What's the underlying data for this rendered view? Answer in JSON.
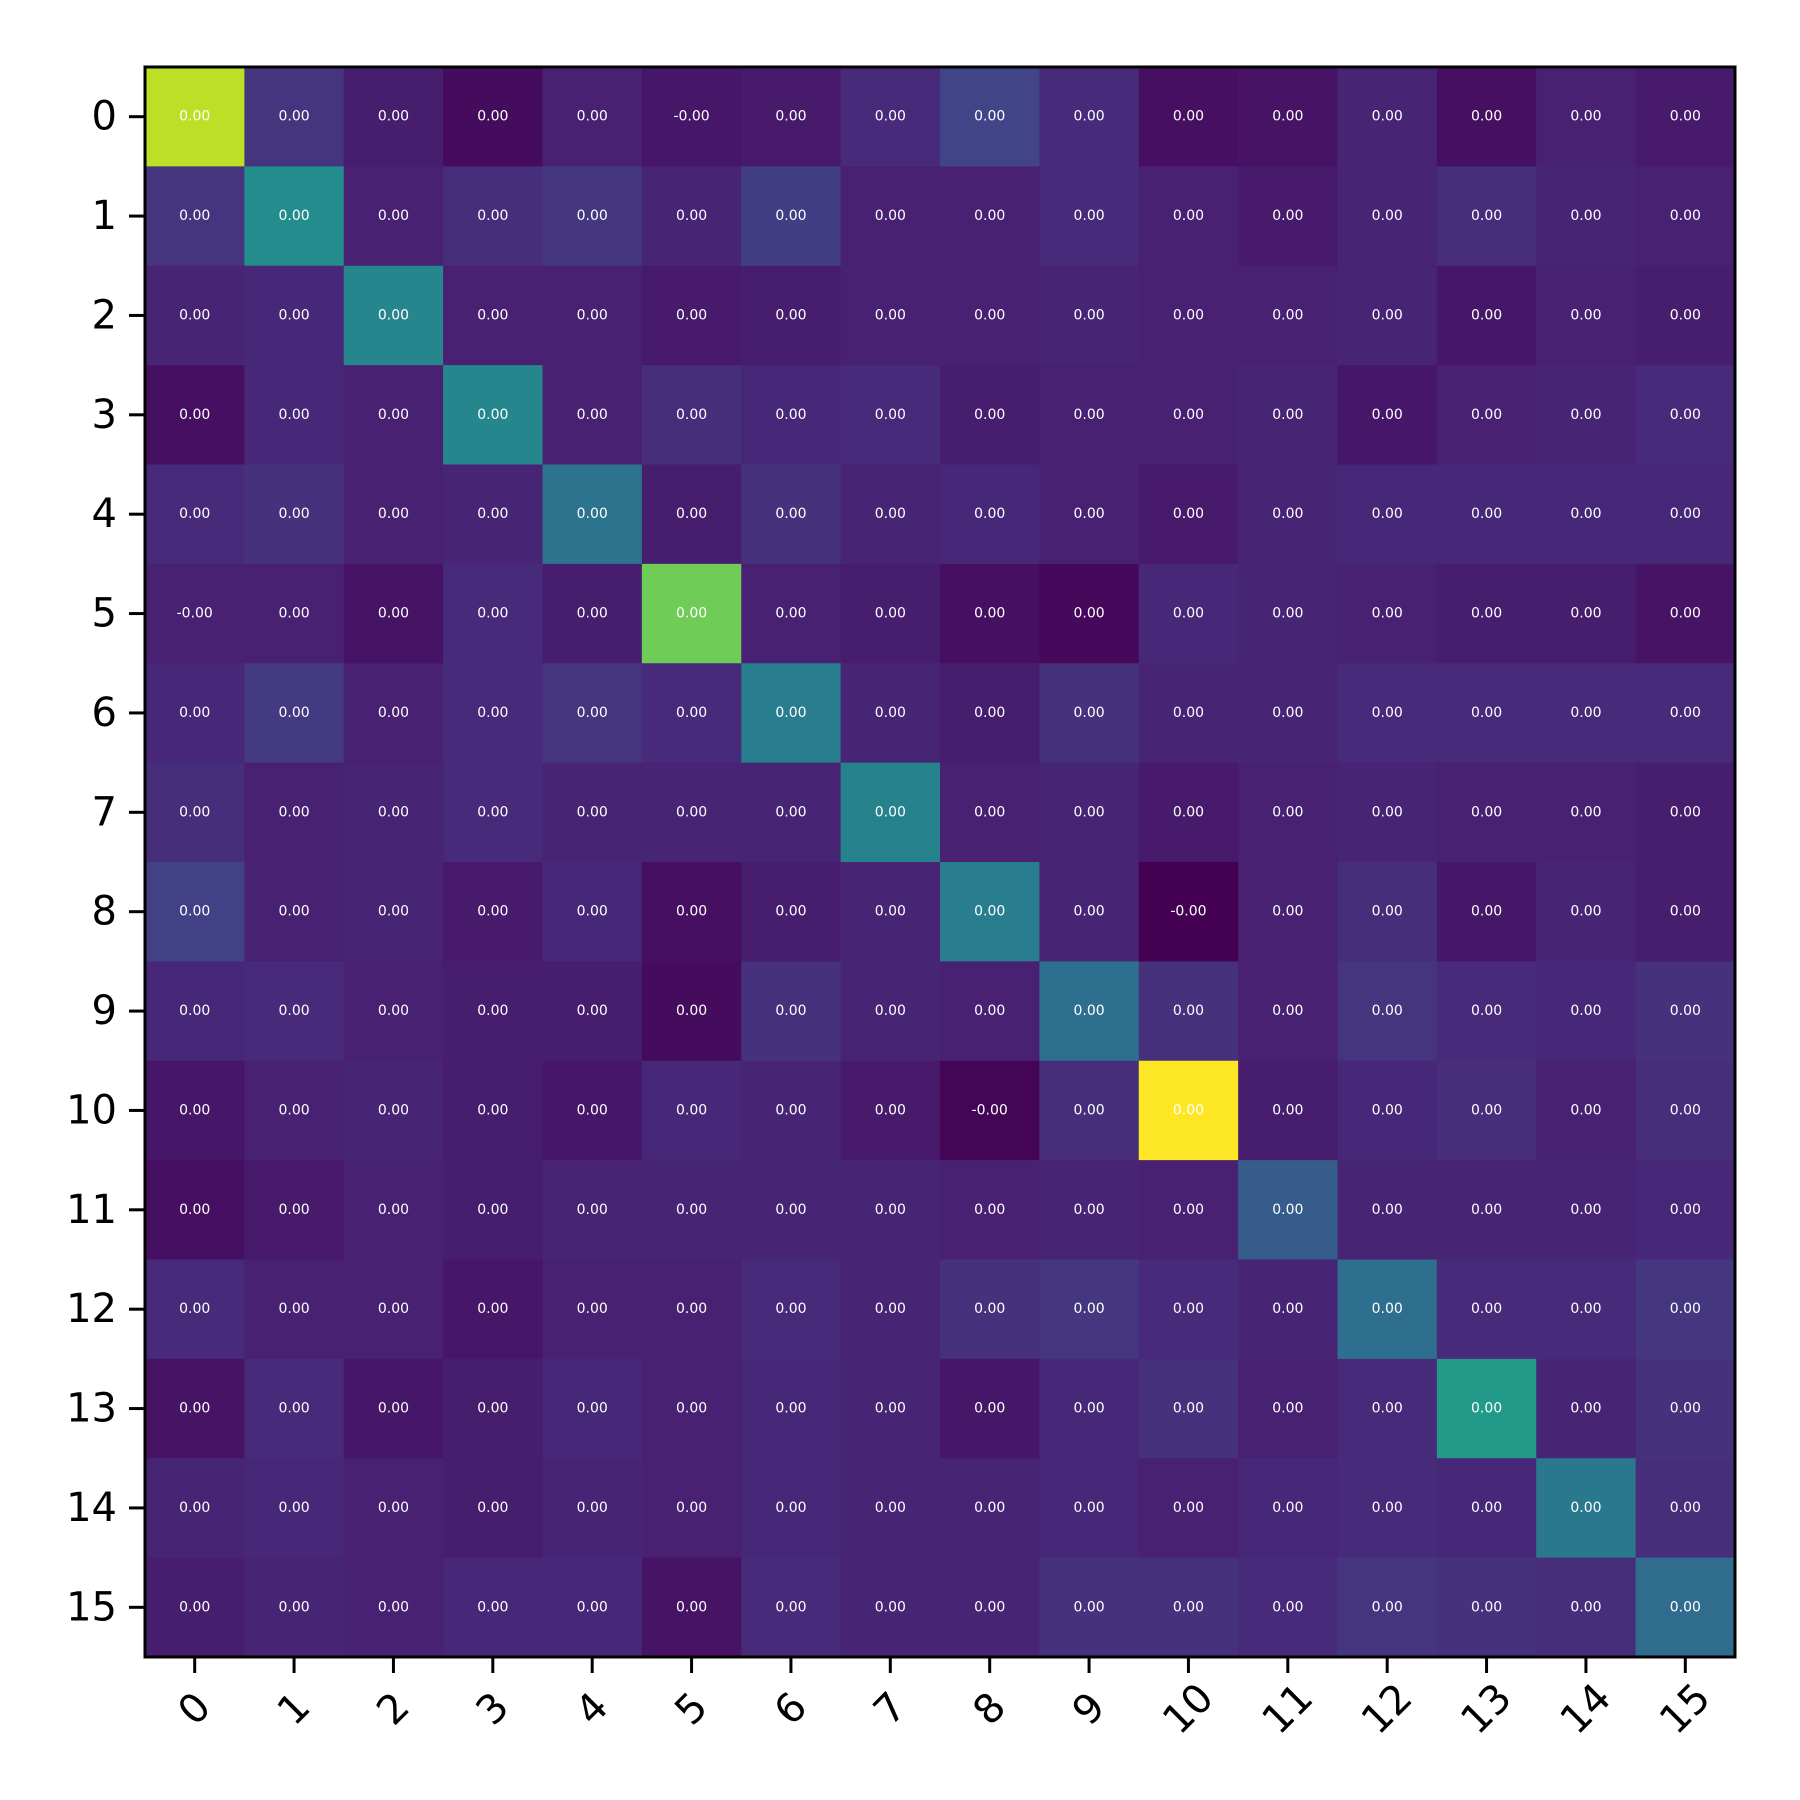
{
  "chart_data": {
    "type": "heatmap",
    "title": "",
    "xlabel": "",
    "ylabel": "",
    "x_tick_labels": [
      "0",
      "1",
      "2",
      "3",
      "4",
      "5",
      "6",
      "7",
      "8",
      "9",
      "10",
      "11",
      "12",
      "13",
      "14",
      "15"
    ],
    "y_tick_labels": [
      "0",
      "1",
      "2",
      "3",
      "4",
      "5",
      "6",
      "7",
      "8",
      "9",
      "10",
      "11",
      "12",
      "13",
      "14",
      "15"
    ],
    "colormap": "viridis",
    "grid": false,
    "legend": "none",
    "values": [
      [
        0.9,
        0.15,
        0.08,
        0.03,
        0.09,
        0.06,
        0.07,
        0.12,
        0.2,
        0.12,
        0.04,
        0.05,
        0.1,
        0.04,
        0.09,
        0.07
      ],
      [
        0.15,
        0.48,
        0.09,
        0.13,
        0.16,
        0.1,
        0.18,
        0.09,
        0.09,
        0.12,
        0.09,
        0.07,
        0.1,
        0.13,
        0.1,
        0.09
      ],
      [
        0.1,
        0.11,
        0.45,
        0.09,
        0.09,
        0.07,
        0.08,
        0.09,
        0.09,
        0.1,
        0.09,
        0.09,
        0.1,
        0.06,
        0.09,
        0.08
      ],
      [
        0.04,
        0.11,
        0.09,
        0.46,
        0.09,
        0.13,
        0.11,
        0.12,
        0.08,
        0.09,
        0.09,
        0.1,
        0.06,
        0.09,
        0.1,
        0.12
      ],
      [
        0.12,
        0.14,
        0.09,
        0.1,
        0.38,
        0.08,
        0.14,
        0.1,
        0.11,
        0.09,
        0.07,
        0.1,
        0.11,
        0.11,
        0.11,
        0.11
      ],
      [
        0.09,
        0.09,
        0.05,
        0.12,
        0.08,
        0.78,
        0.09,
        0.08,
        0.04,
        0.02,
        0.11,
        0.1,
        0.09,
        0.08,
        0.08,
        0.05
      ],
      [
        0.11,
        0.17,
        0.09,
        0.12,
        0.15,
        0.12,
        0.42,
        0.1,
        0.08,
        0.14,
        0.1,
        0.1,
        0.12,
        0.12,
        0.12,
        0.12
      ],
      [
        0.13,
        0.09,
        0.1,
        0.12,
        0.1,
        0.1,
        0.1,
        0.44,
        0.09,
        0.1,
        0.07,
        0.09,
        0.1,
        0.09,
        0.09,
        0.08
      ],
      [
        0.19,
        0.09,
        0.1,
        0.07,
        0.11,
        0.04,
        0.08,
        0.1,
        0.42,
        0.1,
        0.0,
        0.09,
        0.13,
        0.06,
        0.1,
        0.08
      ],
      [
        0.11,
        0.12,
        0.09,
        0.08,
        0.08,
        0.03,
        0.14,
        0.1,
        0.09,
        0.36,
        0.14,
        0.09,
        0.15,
        0.12,
        0.11,
        0.14
      ],
      [
        0.06,
        0.09,
        0.1,
        0.08,
        0.06,
        0.11,
        0.1,
        0.07,
        0.01,
        0.13,
        1.0,
        0.08,
        0.11,
        0.13,
        0.09,
        0.13
      ],
      [
        0.04,
        0.07,
        0.09,
        0.08,
        0.1,
        0.1,
        0.1,
        0.1,
        0.09,
        0.1,
        0.09,
        0.29,
        0.1,
        0.1,
        0.1,
        0.11
      ],
      [
        0.12,
        0.09,
        0.09,
        0.06,
        0.09,
        0.09,
        0.12,
        0.1,
        0.14,
        0.16,
        0.12,
        0.1,
        0.36,
        0.12,
        0.12,
        0.16
      ],
      [
        0.05,
        0.12,
        0.06,
        0.08,
        0.11,
        0.09,
        0.11,
        0.1,
        0.06,
        0.11,
        0.14,
        0.09,
        0.12,
        0.54,
        0.1,
        0.14
      ],
      [
        0.1,
        0.11,
        0.09,
        0.08,
        0.1,
        0.09,
        0.11,
        0.1,
        0.1,
        0.11,
        0.09,
        0.11,
        0.12,
        0.11,
        0.4,
        0.13
      ],
      [
        0.08,
        0.1,
        0.09,
        0.11,
        0.11,
        0.05,
        0.12,
        0.1,
        0.1,
        0.14,
        0.14,
        0.12,
        0.15,
        0.14,
        0.13,
        0.35
      ]
    ],
    "annotations": [
      [
        "0.00",
        "0.00",
        "0.00",
        "0.00",
        "0.00",
        "-0.00",
        "0.00",
        "0.00",
        "0.00",
        "0.00",
        "0.00",
        "0.00",
        "0.00",
        "0.00",
        "0.00",
        "0.00"
      ],
      [
        "0.00",
        "0.00",
        "0.00",
        "0.00",
        "0.00",
        "0.00",
        "0.00",
        "0.00",
        "0.00",
        "0.00",
        "0.00",
        "0.00",
        "0.00",
        "0.00",
        "0.00",
        "0.00"
      ],
      [
        "0.00",
        "0.00",
        "0.00",
        "0.00",
        "0.00",
        "0.00",
        "0.00",
        "0.00",
        "0.00",
        "0.00",
        "0.00",
        "0.00",
        "0.00",
        "0.00",
        "0.00",
        "0.00"
      ],
      [
        "0.00",
        "0.00",
        "0.00",
        "0.00",
        "0.00",
        "0.00",
        "0.00",
        "0.00",
        "0.00",
        "0.00",
        "0.00",
        "0.00",
        "0.00",
        "0.00",
        "0.00",
        "0.00"
      ],
      [
        "0.00",
        "0.00",
        "0.00",
        "0.00",
        "0.00",
        "0.00",
        "0.00",
        "0.00",
        "0.00",
        "0.00",
        "0.00",
        "0.00",
        "0.00",
        "0.00",
        "0.00",
        "0.00"
      ],
      [
        "-0.00",
        "0.00",
        "0.00",
        "0.00",
        "0.00",
        "0.00",
        "0.00",
        "0.00",
        "0.00",
        "0.00",
        "0.00",
        "0.00",
        "0.00",
        "0.00",
        "0.00",
        "0.00"
      ],
      [
        "0.00",
        "0.00",
        "0.00",
        "0.00",
        "0.00",
        "0.00",
        "0.00",
        "0.00",
        "0.00",
        "0.00",
        "0.00",
        "0.00",
        "0.00",
        "0.00",
        "0.00",
        "0.00"
      ],
      [
        "0.00",
        "0.00",
        "0.00",
        "0.00",
        "0.00",
        "0.00",
        "0.00",
        "0.00",
        "0.00",
        "0.00",
        "0.00",
        "0.00",
        "0.00",
        "0.00",
        "0.00",
        "0.00"
      ],
      [
        "0.00",
        "0.00",
        "0.00",
        "0.00",
        "0.00",
        "0.00",
        "0.00",
        "0.00",
        "0.00",
        "0.00",
        "-0.00",
        "0.00",
        "0.00",
        "0.00",
        "0.00",
        "0.00"
      ],
      [
        "0.00",
        "0.00",
        "0.00",
        "0.00",
        "0.00",
        "0.00",
        "0.00",
        "0.00",
        "0.00",
        "0.00",
        "0.00",
        "0.00",
        "0.00",
        "0.00",
        "0.00",
        "0.00"
      ],
      [
        "0.00",
        "0.00",
        "0.00",
        "0.00",
        "0.00",
        "0.00",
        "0.00",
        "0.00",
        "-0.00",
        "0.00",
        "0.00",
        "0.00",
        "0.00",
        "0.00",
        "0.00",
        "0.00"
      ],
      [
        "0.00",
        "0.00",
        "0.00",
        "0.00",
        "0.00",
        "0.00",
        "0.00",
        "0.00",
        "0.00",
        "0.00",
        "0.00",
        "0.00",
        "0.00",
        "0.00",
        "0.00",
        "0.00"
      ],
      [
        "0.00",
        "0.00",
        "0.00",
        "0.00",
        "0.00",
        "0.00",
        "0.00",
        "0.00",
        "0.00",
        "0.00",
        "0.00",
        "0.00",
        "0.00",
        "0.00",
        "0.00",
        "0.00"
      ],
      [
        "0.00",
        "0.00",
        "0.00",
        "0.00",
        "0.00",
        "0.00",
        "0.00",
        "0.00",
        "0.00",
        "0.00",
        "0.00",
        "0.00",
        "0.00",
        "0.00",
        "0.00",
        "0.00"
      ],
      [
        "0.00",
        "0.00",
        "0.00",
        "0.00",
        "0.00",
        "0.00",
        "0.00",
        "0.00",
        "0.00",
        "0.00",
        "0.00",
        "0.00",
        "0.00",
        "0.00",
        "0.00",
        "0.00"
      ],
      [
        "0.00",
        "0.00",
        "0.00",
        "0.00",
        "0.00",
        "0.00",
        "0.00",
        "0.00",
        "0.00",
        "0.00",
        "0.00",
        "0.00",
        "0.00",
        "0.00",
        "0.00",
        "0.00"
      ]
    ]
  }
}
